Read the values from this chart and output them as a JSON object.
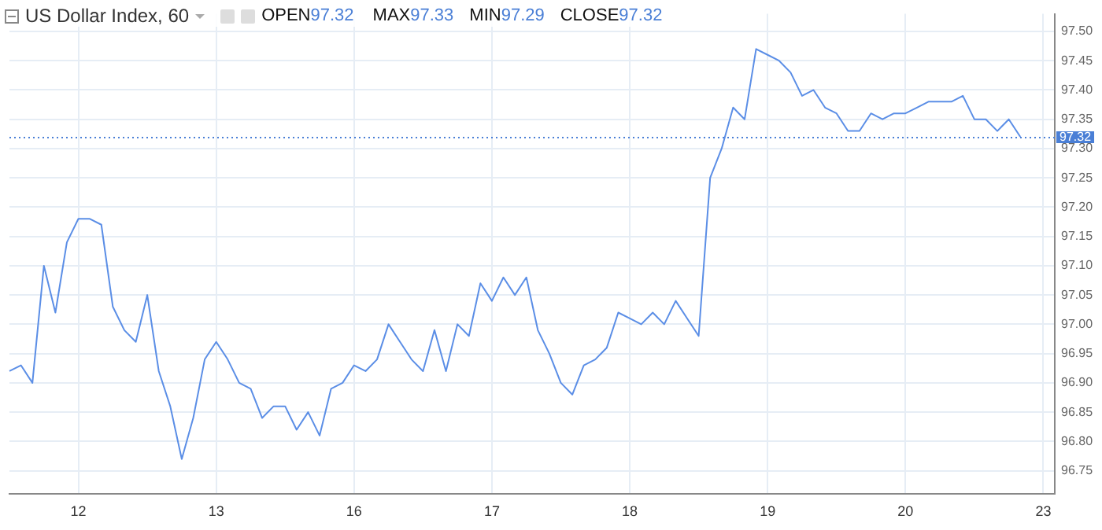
{
  "chart_data": {
    "type": "line",
    "title": "US Dollar Index, 60",
    "annotations": [
      "OPEN97.32",
      "MAX97.33",
      "MIN97.29",
      "CLOSE97.32"
    ],
    "categories": [
      null,
      null,
      null,
      null,
      null,
      null,
      "12",
      null,
      null,
      null,
      null,
      null,
      null,
      null,
      null,
      null,
      null,
      null,
      "13",
      null,
      null,
      null,
      null,
      null,
      null,
      null,
      null,
      null,
      null,
      null,
      "16",
      null,
      null,
      null,
      null,
      null,
      null,
      null,
      null,
      null,
      null,
      null,
      "17",
      null,
      null,
      null,
      null,
      null,
      null,
      null,
      null,
      null,
      null,
      null,
      "18",
      null,
      null,
      null,
      null,
      null,
      null,
      null,
      null,
      null,
      null,
      null,
      "19",
      null,
      null,
      null,
      null,
      null,
      null,
      null,
      null,
      null,
      null,
      null,
      "20",
      null,
      null,
      null,
      null,
      null,
      null,
      null,
      null,
      null,
      null,
      null,
      "23",
      null
    ],
    "series": [
      {
        "color": "#5b8ee6",
        "values": [
          96.92,
          96.93,
          96.9,
          97.1,
          97.02,
          97.14,
          97.18,
          97.18,
          97.17,
          97.03,
          96.99,
          96.97,
          97.05,
          96.92,
          96.86,
          96.77,
          96.84,
          96.94,
          96.97,
          96.94,
          96.9,
          96.89,
          96.84,
          96.86,
          96.86,
          96.82,
          96.85,
          96.81,
          96.89,
          96.9,
          96.93,
          96.92,
          96.94,
          97.0,
          96.97,
          96.94,
          96.92,
          96.99,
          96.92,
          97.0,
          96.98,
          97.07,
          97.04,
          97.08,
          97.05,
          97.08,
          96.99,
          96.95,
          96.9,
          96.88,
          96.93,
          96.94,
          96.96,
          97.02,
          97.01,
          97.0,
          97.02,
          97.0,
          97.04,
          97.01,
          96.98,
          97.25,
          97.3,
          97.37,
          97.35,
          97.47,
          97.46,
          97.45,
          97.43,
          97.39,
          97.4,
          97.37,
          97.36,
          97.33,
          97.33,
          97.36,
          97.35,
          97.36,
          97.36,
          97.37,
          97.38,
          97.38,
          97.38,
          97.39,
          97.35,
          97.35,
          97.33,
          97.35,
          97.32,
          null,
          null,
          null
        ]
      }
    ],
    "ylim": [
      96.71,
      97.53
    ],
    "yticks": [
      96.75,
      {
        "value": 96.8,
        "label": "96.80"
      },
      96.85,
      {
        "value": 96.9,
        "label": "96.90"
      },
      96.95,
      {
        "value": 97,
        "label": "97.00"
      },
      97.05,
      {
        "value": 97.1,
        "label": "97.10"
      },
      97.15,
      {
        "value": 97.2,
        "label": "97.20"
      },
      97.25,
      {
        "value": 97.3,
        "label": "97.30"
      },
      97.35,
      {
        "value": 97.4,
        "label": "97.40"
      },
      97.45,
      {
        "value": 97.5,
        "label": "97.50"
      }
    ],
    "grid": true,
    "ref_lines": [
      {
        "axis": "y",
        "value": 97.32,
        "label": "97.32",
        "color": "#4a7fd6",
        "line_style": "dotted"
      }
    ]
  }
}
